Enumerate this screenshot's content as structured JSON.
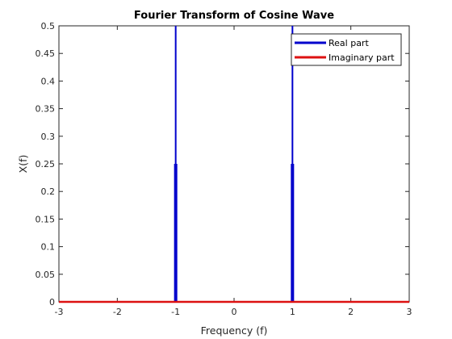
{
  "chart_data": {
    "type": "line",
    "title": "Fourier Transform of Cosine Wave",
    "xlabel": "Frequency (f)",
    "ylabel": "X(f)",
    "xlim": [
      -3,
      3
    ],
    "ylim": [
      0,
      0.5
    ],
    "xticks": [
      -3,
      -2,
      -1,
      0,
      1,
      2,
      3
    ],
    "yticks": [
      0,
      0.05,
      0.1,
      0.15,
      0.2,
      0.25,
      0.3,
      0.35,
      0.4,
      0.45,
      0.5
    ],
    "grid": false,
    "legend_location": "top-right",
    "series": [
      {
        "name": "Real part",
        "color": "#0000cc",
        "style": "stem",
        "impulses": [
          {
            "x": -1,
            "y": 0.25,
            "tip": 0.5
          },
          {
            "x": 1,
            "y": 0.25,
            "tip": 0.5
          }
        ]
      },
      {
        "name": "Imaginary part",
        "color": "#dd1111",
        "style": "line",
        "x": [
          -3,
          3
        ],
        "y": [
          0,
          0
        ]
      }
    ]
  }
}
